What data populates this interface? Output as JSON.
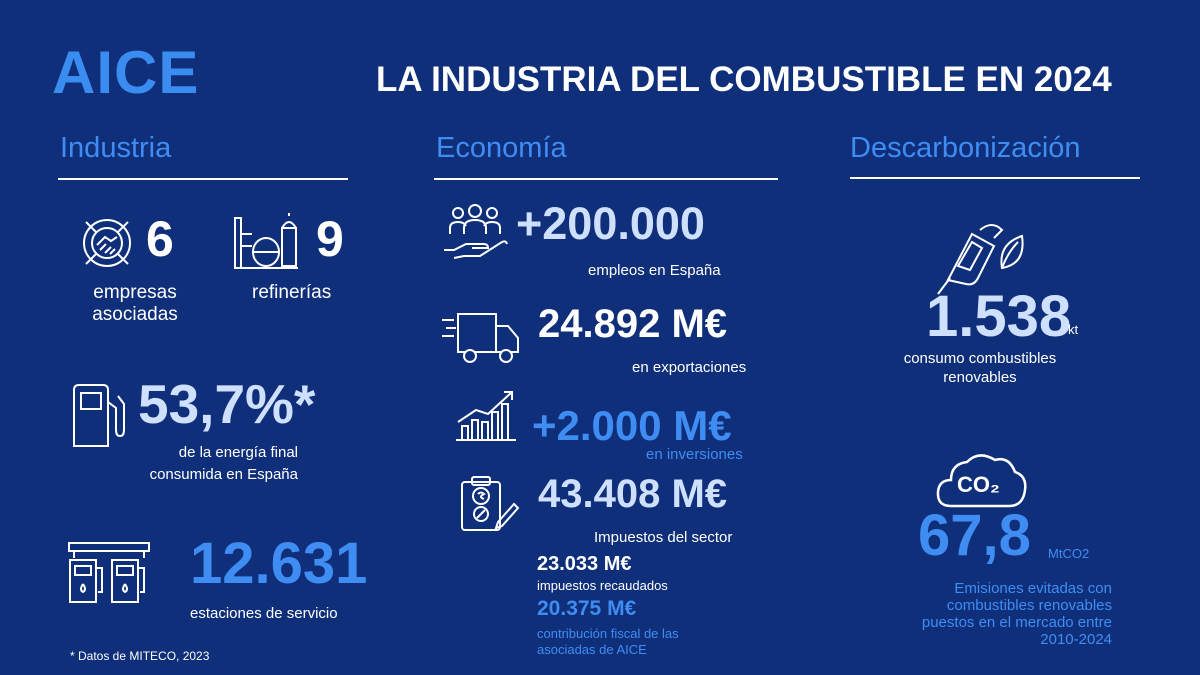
{
  "brand": {
    "logo": "AICE"
  },
  "title": "LA INDUSTRIA DEL COMBUSTIBLE EN 2024",
  "colors": {
    "background": "#0f2f7a",
    "accent_blue": "#3f8df3",
    "light_blue": "#cfe0ff",
    "white": "#ffffff"
  },
  "industria": {
    "title": "Industria",
    "empresas": {
      "value": "6",
      "label_line1": "empresas",
      "label_line2": "asociadas",
      "icon": "handshake-gear-icon"
    },
    "refinerias": {
      "value": "9",
      "label": "refinerías",
      "icon": "refinery-icon"
    },
    "energia": {
      "value": "53,7%*",
      "label_line1": "de la energía final",
      "label_line2": "consumida en España",
      "icon": "fuel-pump-icon"
    },
    "estaciones": {
      "value": "12.631",
      "label": "estaciones de servicio",
      "icon": "gas-station-icon"
    }
  },
  "economia": {
    "title": "Economía",
    "empleos": {
      "value": "+200.000",
      "label": "empleos en España",
      "icon": "people-hand-icon"
    },
    "exportaciones": {
      "value": "24.892 M€",
      "label": "en exportaciones",
      "icon": "delivery-truck-icon"
    },
    "inversiones": {
      "value": "+2.000 M€",
      "label": "en inversiones",
      "icon": "growth-chart-icon"
    },
    "impuestos": {
      "value": "43.408 M€",
      "label": "Impuestos del sector",
      "icon": "tax-document-icon",
      "recaudados": {
        "value": "23.033 M€",
        "label": "impuestos recaudados"
      },
      "contribucion": {
        "value": "20.375 M€",
        "label_line1": "contribución fiscal de las",
        "label_line2": "asociadas de AICE"
      }
    }
  },
  "descarbonizacion": {
    "title": "Descarbonización",
    "renovables": {
      "value": "1.538",
      "unit": "kt",
      "label_line1": "consumo combustibles",
      "label_line2": "renovables",
      "icon": "fuel-nozzle-leaf-icon"
    },
    "emisiones": {
      "value": "67,8",
      "unit": "MtCO2",
      "label_line1": "Emisiones evitadas con",
      "label_line2": "combustibles renovables",
      "label_line3": "puestos en el mercado entre",
      "label_line4": "2010-2024",
      "icon": "co2-cloud-icon",
      "icon_text": "CO₂"
    }
  },
  "footnote": "* Datos de MITECO, 2023"
}
